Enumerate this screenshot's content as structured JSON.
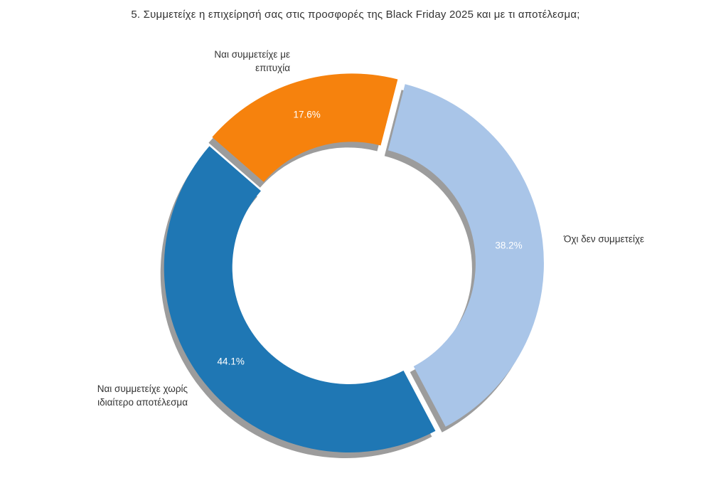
{
  "title": "5. Συμμετείχε η επιχείρησή σας στις προσφορές της Black Friday 2025 και με τι αποτέλεσμα;",
  "chart_data": {
    "type": "pie",
    "subtype": "donut",
    "hole_ratio": 0.63,
    "rotation_deg": 139,
    "direction": "clockwise",
    "legend": "none",
    "background": "#ffffff",
    "labels": [
      "Ναι συμμετείχε με\nεπιτυχία",
      "Όχι δεν συμμετείχε",
      "Ναι συμμετείχε χωρίς\nιδιαίτερο αποτέλεσμα"
    ],
    "values": [
      17.6,
      38.2,
      44.1
    ],
    "value_labels": [
      "17.6%",
      "38.2%",
      "44.1%"
    ],
    "colors": [
      "#F6820D",
      "#A9C5E8",
      "#1F77B4"
    ],
    "shadow_color": "#9C9C9C",
    "percent_text_color": "#ffffff",
    "label_text_color": "#333333"
  }
}
